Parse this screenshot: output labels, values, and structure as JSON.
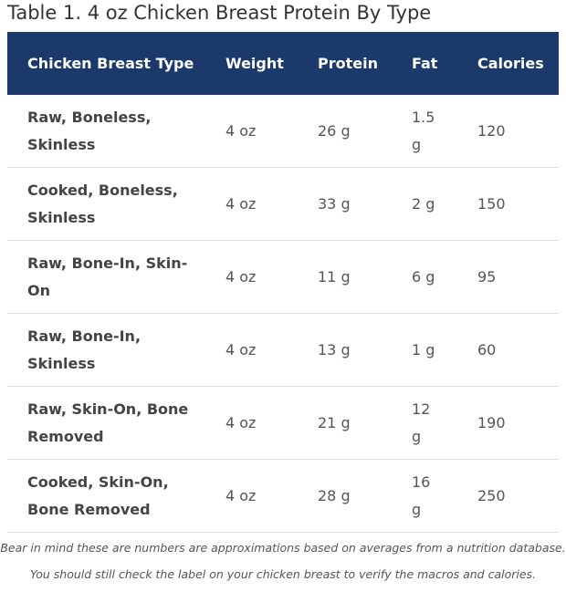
{
  "title": "Table 1. 4 oz Chicken Breast Protein By Type",
  "table": {
    "header": [
      "Chicken Breast Type",
      "Weight",
      "Protein",
      "Fat",
      "Calories"
    ],
    "rows": [
      [
        "Raw, Boneless, Skinless",
        "4 oz",
        "26 g",
        "1.5 g",
        "120"
      ],
      [
        "Cooked, Boneless, Skinless",
        "4 oz",
        "33 g",
        "2 g",
        "150"
      ],
      [
        "Raw, Bone-In, Skin-On",
        "4 oz",
        "11 g",
        "6 g",
        "95"
      ],
      [
        "Raw, Bone-In, Skinless",
        "4 oz",
        "13 g",
        "1 g",
        "60"
      ],
      [
        "Raw, Skin-On, Bone Removed",
        "4 oz",
        "21 g",
        "12 g",
        "190"
      ],
      [
        "Cooked, Skin-On, Bone Removed",
        "4 oz",
        "28 g",
        "16 g",
        "250"
      ]
    ]
  },
  "notes": [
    "Bear in mind these are numbers are approximations based on averages from a nutrition database.",
    "You should still check the label on your chicken breast to verify the macros and calories."
  ]
}
